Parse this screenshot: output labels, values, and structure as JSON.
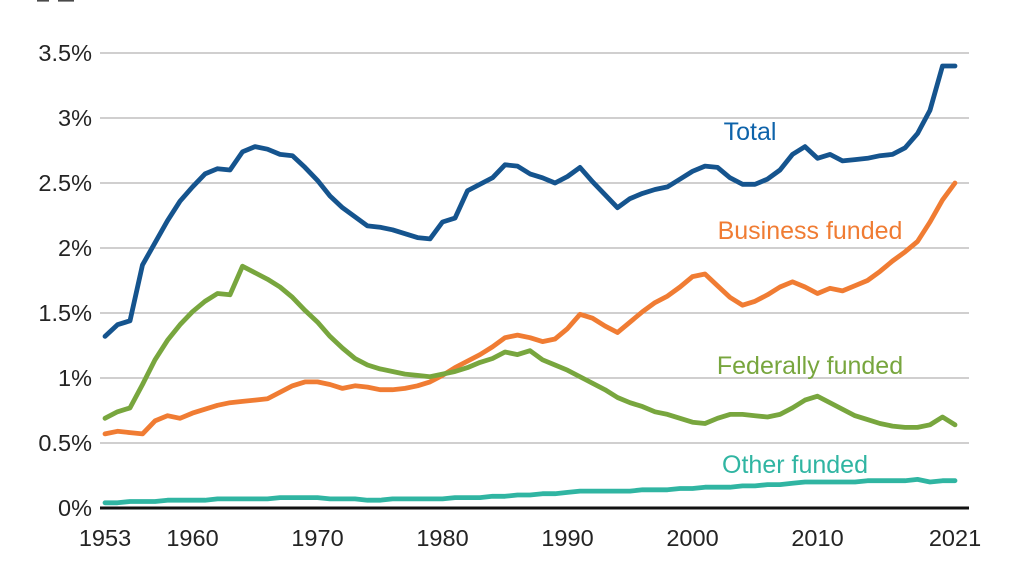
{
  "page": {
    "background": "#ffffff"
  },
  "colors": {
    "grid": "#b3b2b2",
    "axis": "#111111",
    "tick_text": "#242424"
  },
  "chart_data": {
    "type": "line",
    "title": "",
    "xlim": [
      1953,
      2021
    ],
    "ylim": [
      0,
      3.7
    ],
    "grid": "horizontal-only",
    "legend": "inline-series-labels",
    "x_start_year": 1953,
    "x_end_year": 2021,
    "x_tick_years": [
      1953,
      1960,
      1970,
      1980,
      1990,
      2000,
      2010,
      2021
    ],
    "x_tick_labels": [
      "1953",
      "1960",
      "1970",
      "1980",
      "1990",
      "2000",
      "2010",
      "2021"
    ],
    "y_ticks": [
      0,
      0.5,
      1,
      1.5,
      2,
      2.5,
      3,
      3.5
    ],
    "y_tick_labels": [
      "0%",
      "0.5%",
      "1%",
      "1.5%",
      "2%",
      "2.5%",
      "3%",
      "3.5%"
    ],
    "series": [
      {
        "name": "Total",
        "label": "Total",
        "color": "#15548e",
        "label_color": "#0e63aa",
        "values": [
          1.32,
          1.41,
          1.44,
          1.87,
          2.04,
          2.21,
          2.36,
          2.47,
          2.57,
          2.61,
          2.6,
          2.74,
          2.78,
          2.76,
          2.72,
          2.71,
          2.62,
          2.52,
          2.4,
          2.31,
          2.24,
          2.17,
          2.16,
          2.14,
          2.11,
          2.08,
          2.07,
          2.2,
          2.23,
          2.44,
          2.49,
          2.54,
          2.64,
          2.63,
          2.57,
          2.54,
          2.5,
          2.55,
          2.62,
          2.51,
          2.41,
          2.31,
          2.38,
          2.42,
          2.45,
          2.47,
          2.53,
          2.59,
          2.63,
          2.62,
          2.54,
          2.49,
          2.49,
          2.53,
          2.6,
          2.72,
          2.78,
          2.69,
          2.72,
          2.67,
          2.68,
          2.69,
          2.71,
          2.72,
          2.77,
          2.88,
          3.06,
          3.4,
          3.4
        ]
      },
      {
        "name": "Business funded",
        "label": "Business funded",
        "color": "#f07c33",
        "label_color": "#f07c33",
        "values": [
          0.57,
          0.59,
          0.58,
          0.57,
          0.67,
          0.71,
          0.69,
          0.73,
          0.76,
          0.79,
          0.81,
          0.82,
          0.83,
          0.84,
          0.89,
          0.94,
          0.97,
          0.97,
          0.95,
          0.92,
          0.94,
          0.93,
          0.91,
          0.91,
          0.92,
          0.94,
          0.97,
          1.02,
          1.08,
          1.13,
          1.18,
          1.24,
          1.31,
          1.33,
          1.31,
          1.28,
          1.3,
          1.38,
          1.49,
          1.46,
          1.4,
          1.35,
          1.43,
          1.51,
          1.58,
          1.63,
          1.7,
          1.78,
          1.8,
          1.71,
          1.62,
          1.56,
          1.59,
          1.64,
          1.7,
          1.74,
          1.7,
          1.65,
          1.69,
          1.67,
          1.71,
          1.75,
          1.82,
          1.9,
          1.97,
          2.05,
          2.2,
          2.37,
          2.5
        ]
      },
      {
        "name": "Federally funded",
        "label": "Federally funded",
        "color": "#78a63e",
        "label_color": "#78a63e",
        "values": [
          0.69,
          0.74,
          0.77,
          0.95,
          1.14,
          1.29,
          1.41,
          1.51,
          1.59,
          1.65,
          1.64,
          1.86,
          1.81,
          1.76,
          1.7,
          1.62,
          1.52,
          1.43,
          1.32,
          1.23,
          1.15,
          1.1,
          1.07,
          1.05,
          1.03,
          1.02,
          1.01,
          1.03,
          1.05,
          1.08,
          1.12,
          1.15,
          1.2,
          1.18,
          1.21,
          1.14,
          1.1,
          1.06,
          1.01,
          0.96,
          0.91,
          0.85,
          0.81,
          0.78,
          0.74,
          0.72,
          0.69,
          0.66,
          0.65,
          0.69,
          0.72,
          0.72,
          0.71,
          0.7,
          0.72,
          0.77,
          0.83,
          0.86,
          0.81,
          0.76,
          0.71,
          0.68,
          0.65,
          0.63,
          0.62,
          0.62,
          0.64,
          0.7,
          0.64
        ]
      },
      {
        "name": "Other funded",
        "label": "Other funded",
        "color": "#30b5a2",
        "label_color": "#30b5a2",
        "values": [
          0.04,
          0.04,
          0.05,
          0.05,
          0.05,
          0.06,
          0.06,
          0.06,
          0.06,
          0.07,
          0.07,
          0.07,
          0.07,
          0.07,
          0.08,
          0.08,
          0.08,
          0.08,
          0.07,
          0.07,
          0.07,
          0.06,
          0.06,
          0.07,
          0.07,
          0.07,
          0.07,
          0.07,
          0.08,
          0.08,
          0.08,
          0.09,
          0.09,
          0.1,
          0.1,
          0.11,
          0.11,
          0.12,
          0.13,
          0.13,
          0.13,
          0.13,
          0.13,
          0.14,
          0.14,
          0.14,
          0.15,
          0.15,
          0.16,
          0.16,
          0.16,
          0.17,
          0.17,
          0.18,
          0.18,
          0.19,
          0.2,
          0.2,
          0.2,
          0.2,
          0.2,
          0.21,
          0.21,
          0.21,
          0.21,
          0.22,
          0.2,
          0.21,
          0.21
        ]
      }
    ]
  }
}
